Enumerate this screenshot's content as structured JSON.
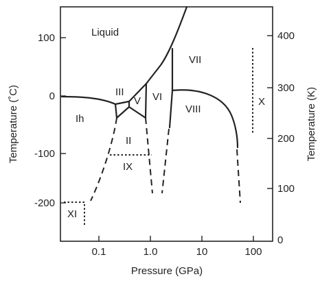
{
  "axes": {
    "x_title": "Pressure (GPa)",
    "y_left_title": "Temperature (˚C)",
    "y_right_title": "Temperature (K)",
    "x_ticks": [
      "0.1",
      "1.0",
      "10",
      "100"
    ],
    "y_left_ticks": [
      "100",
      "0",
      "-100",
      "-200"
    ],
    "y_right_ticks": [
      "400",
      "300",
      "200",
      "100",
      "0"
    ]
  },
  "phases": {
    "liquid": "Liquid",
    "ih": "Ih",
    "iii": "III",
    "v": "V",
    "vi": "VI",
    "vii": "VII",
    "viii": "VIII",
    "ii": "II",
    "ix": "IX",
    "x": "X",
    "xi": "XI"
  }
}
